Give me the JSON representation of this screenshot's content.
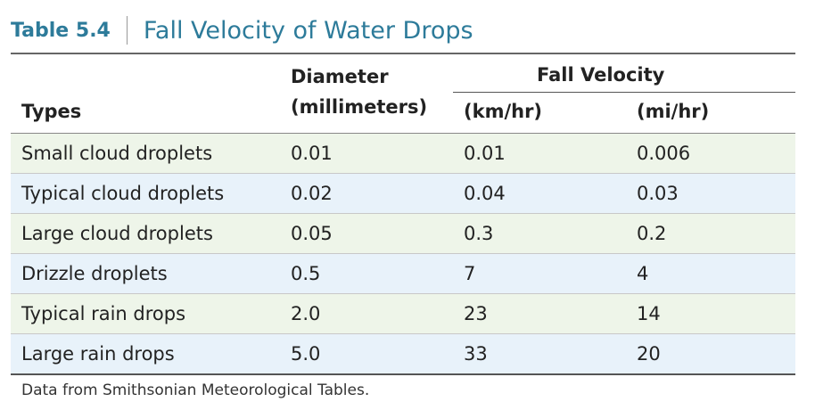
{
  "title": {
    "number": "Table 5.4",
    "text": "Fall Velocity of Water Drops"
  },
  "headers": {
    "types": "Types",
    "diameter_line1": "Diameter",
    "diameter_line2": "(millimeters)",
    "fall_velocity": "Fall Velocity",
    "km_hr": "(km/hr)",
    "mi_hr": "(mi/hr)"
  },
  "rows": [
    {
      "type": "Small cloud droplets",
      "diameter": "0.01",
      "km_hr": "0.01",
      "mi_hr": "0.006"
    },
    {
      "type": "Typical cloud droplets",
      "diameter": "0.02",
      "km_hr": "0.04",
      "mi_hr": "0.03"
    },
    {
      "type": "Large cloud droplets",
      "diameter": "0.05",
      "km_hr": "0.3",
      "mi_hr": "0.2"
    },
    {
      "type": "Drizzle droplets",
      "diameter": "0.5",
      "km_hr": "7",
      "mi_hr": "4"
    },
    {
      "type": "Typical rain drops",
      "diameter": "2.0",
      "km_hr": "23",
      "mi_hr": "14"
    },
    {
      "type": "Large rain drops",
      "diameter": "5.0",
      "km_hr": "33",
      "mi_hr": "20"
    }
  ],
  "source": "Data from Smithsonian Meteorological Tables.",
  "colors": {
    "title": "#2d7b9a",
    "row_green": "#eef5e9",
    "row_blue": "#e8f2fa"
  }
}
